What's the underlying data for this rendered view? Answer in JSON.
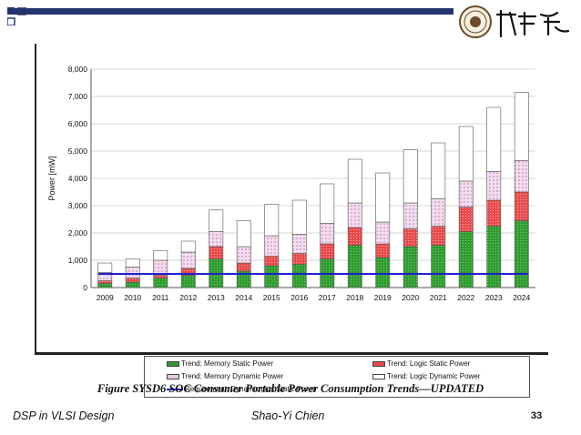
{
  "chart_data": {
    "type": "bar",
    "stacked": true,
    "title": "",
    "xlabel": "",
    "ylabel": "Power [mW]",
    "ylim": [
      0,
      8000
    ],
    "yticks": [
      "0",
      "1,000",
      "2,000",
      "3,000",
      "4,000",
      "5,000",
      "6,000",
      "7,000",
      "8,000"
    ],
    "grid": true,
    "legend_position": "bottom",
    "categories": [
      "2009",
      "2010",
      "2011",
      "2012",
      "2013",
      "2014",
      "2015",
      "2016",
      "2017",
      "2018",
      "2019",
      "2020",
      "2021",
      "2022",
      "2023",
      "2024"
    ],
    "series": [
      {
        "name": "Trend: Memory Static Power",
        "color": "#2e9c2e",
        "values": [
          150,
          200,
          350,
          450,
          1050,
          600,
          800,
          850,
          1050,
          1550,
          1100,
          1500,
          1550,
          2050,
          2250,
          2450
        ]
      },
      {
        "name": "Trend: Logic Static Power",
        "color": "#e84a4a",
        "values": [
          100,
          150,
          100,
          250,
          450,
          300,
          350,
          400,
          550,
          650,
          500,
          650,
          700,
          900,
          950,
          1050
        ]
      },
      {
        "name": "Trend: Memory Dynamic Power",
        "color": "#e8c6e0",
        "values": [
          300,
          400,
          550,
          600,
          550,
          600,
          750,
          700,
          750,
          900,
          800,
          950,
          1000,
          950,
          1050,
          1150
        ]
      },
      {
        "name": "Trend: Logic Dynamic Power",
        "color": "#ffffff",
        "values": [
          350,
          300,
          350,
          400,
          800,
          950,
          1150,
          1250,
          1450,
          1600,
          1800,
          1950,
          2050,
          2000,
          2350,
          2500
        ]
      }
    ],
    "requirement": {
      "name": "Requirement: Dynamic plus Static Power",
      "color": "#1f1fd0",
      "value": 500
    }
  },
  "caption": "Figure SYSD6 SOC Consumer Portable Power Consumption Trends—UPDATED",
  "footer": {
    "left": "DSP in VLSI Design",
    "center": "Shao-Yi Chien",
    "page": "33"
  },
  "colors": {
    "title_rule": "#25346e",
    "accent_square": "#25346e"
  }
}
